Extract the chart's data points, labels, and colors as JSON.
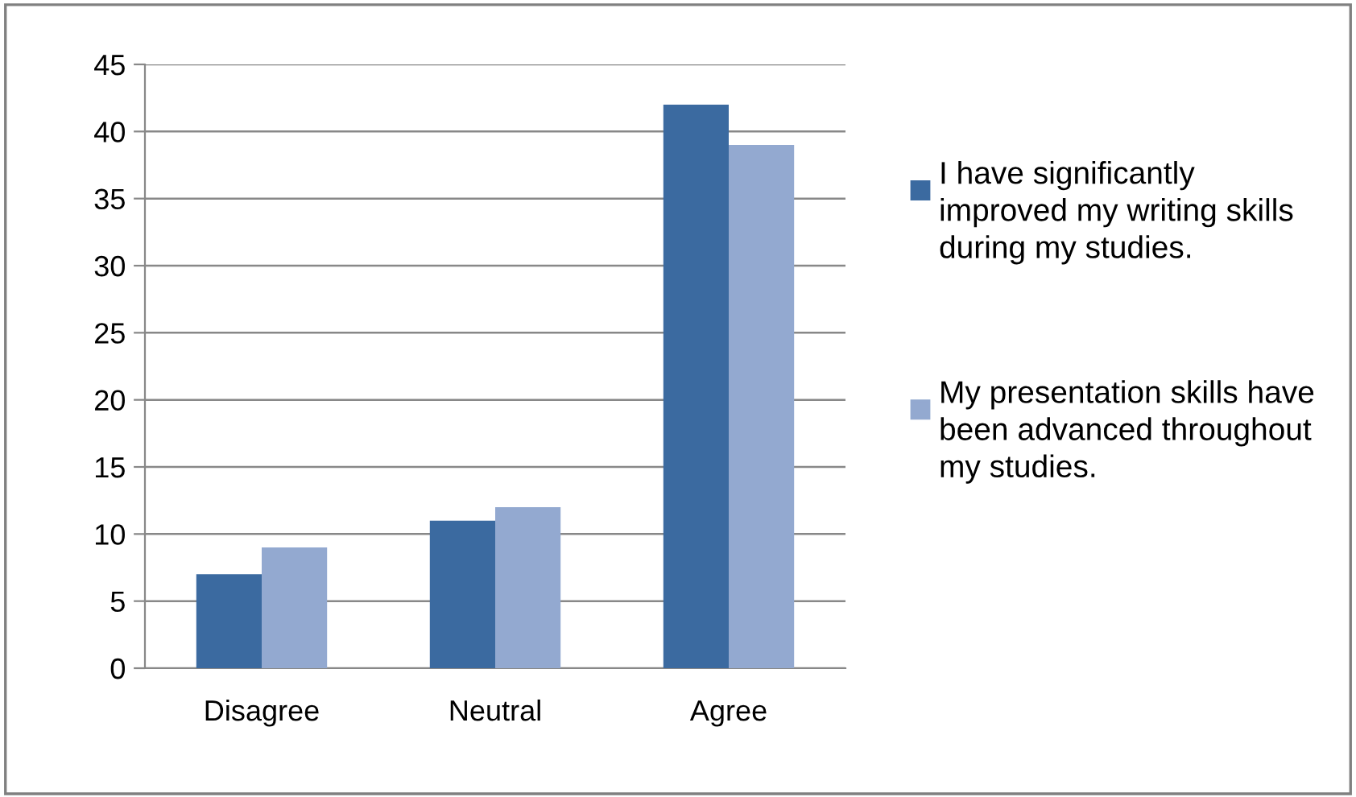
{
  "chart_data": {
    "type": "bar",
    "categories": [
      "Disagree",
      "Neutral",
      "Agree"
    ],
    "series": [
      {
        "name": "I have significantly improved my writing skills during my studies.",
        "color": "#3b6aa0",
        "values": [
          7,
          11,
          42
        ]
      },
      {
        "name": "My presentation skills have been advanced throughout my studies.",
        "color": "#93a9d0",
        "values": [
          9,
          12,
          39
        ]
      }
    ],
    "ylim": [
      0,
      45
    ],
    "yticks": [
      0,
      5,
      10,
      15,
      20,
      25,
      30,
      35,
      40,
      45
    ],
    "grid": "y",
    "legend": "right"
  }
}
